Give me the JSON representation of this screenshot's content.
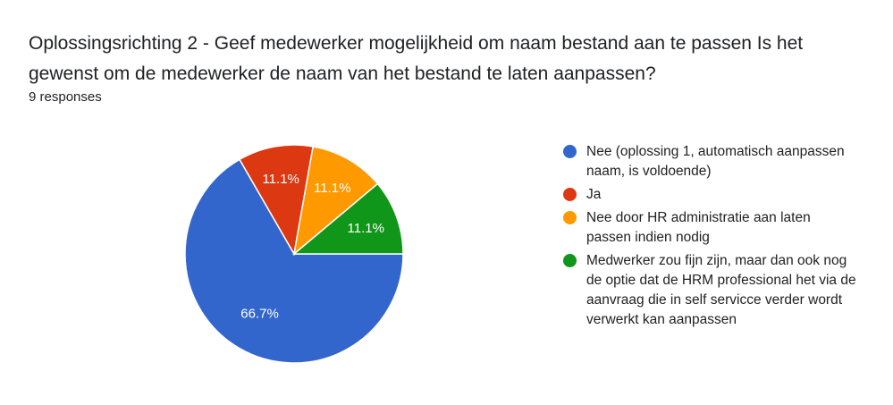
{
  "title": "Oplossingsrichting 2 - Geef medewerker mogelijkheid om naam bestand aan te passen    Is het gewenst om de medewerker de naam van het bestand te laten aanpassen?",
  "responses_label": "9 responses",
  "chart_data": {
    "type": "pie",
    "categories": [
      "Nee (oplossing 1, automatisch aanpassen naam, is voldoende)",
      "Ja",
      "Nee door HR administratie aan laten passen indien nodig",
      "Medwerker zou fijn zijn, maar dan ook nog de optie dat de HRM professional het via de aanvraag die in self servicce verder wordt verwerkt kan aanpassen"
    ],
    "values": [
      6,
      1,
      1,
      1
    ],
    "value_labels": [
      "66.7%",
      "11.1%",
      "11.1%",
      "11.1%"
    ],
    "colors": [
      "#3366cc",
      "#dc3912",
      "#ff9900",
      "#109618"
    ],
    "legend_position": "right"
  }
}
